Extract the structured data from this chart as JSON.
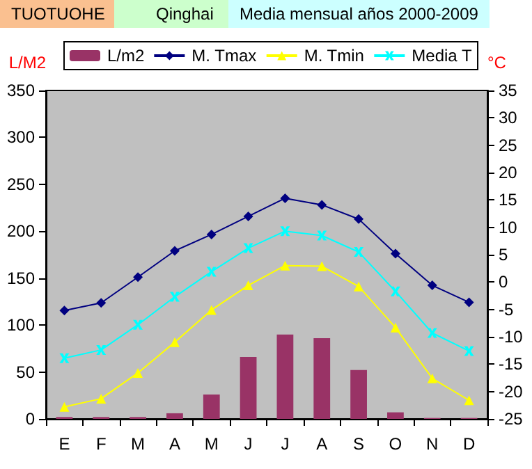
{
  "chart_data": {
    "type": "bar",
    "title": "TUOTUOHE",
    "subtitle": "Qinghai",
    "annotations": [
      "Media mensual años 2000-2009"
    ],
    "ylabel": "L/M2",
    "y2label": "°C",
    "categories": [
      "E",
      "F",
      "M",
      "A",
      "M",
      "J",
      "J",
      "A",
      "S",
      "O",
      "N",
      "D"
    ],
    "series": [
      {
        "name": "L/m2",
        "color": "#993366",
        "values": [
          2,
          2,
          2,
          6,
          26,
          66,
          90,
          86,
          52,
          7,
          1,
          1
        ]
      },
      {
        "name": "M. Tmax",
        "type": "line",
        "axis": "y2",
        "marker": "diamond",
        "color": "#000080",
        "values": [
          -5.2,
          -3.8,
          0.9,
          5.7,
          8.7,
          12,
          15.3,
          14.1,
          11.5,
          5.2,
          -0.6,
          -3.7
        ]
      },
      {
        "name": "M. Tmin",
        "type": "line",
        "axis": "y2",
        "marker": "triangle",
        "color": "#ffff00",
        "values": [
          -22.8,
          -21.3,
          -16.6,
          -11,
          -5.1,
          -0.6,
          3,
          2.9,
          -0.8,
          -8.3,
          -17.6,
          -21.6
        ]
      },
      {
        "name": "Media T",
        "type": "line",
        "axis": "y2",
        "marker": "cross",
        "color": "#00ffff",
        "values": [
          -13.9,
          -12.4,
          -7.8,
          -2.7,
          1.9,
          6.2,
          9.3,
          8.5,
          5.5,
          -1.7,
          -9.3,
          -12.6
        ]
      }
    ],
    "ylim": [
      0,
      350
    ],
    "yticks": [
      0,
      50,
      100,
      150,
      200,
      250,
      300,
      350
    ],
    "y2lim": [
      -25,
      35
    ],
    "y2ticks": [
      -25,
      -20,
      -15,
      -10,
      -5,
      0,
      5,
      10,
      15,
      20,
      25,
      30,
      35
    ],
    "grid": false,
    "legend": "top"
  }
}
